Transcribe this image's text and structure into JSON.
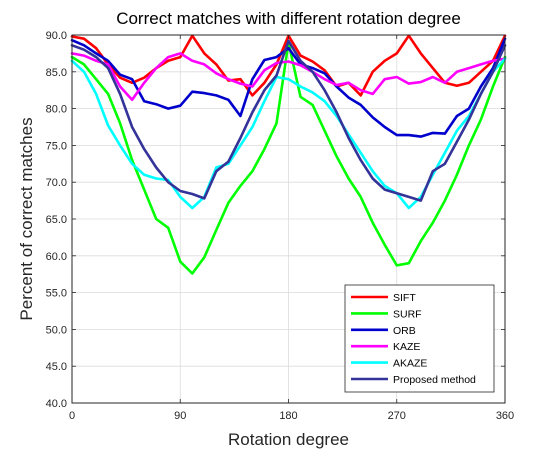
{
  "chart_data": {
    "type": "line",
    "title": "Correct matches with different rotation degree",
    "xlabel": "Rotation degree",
    "ylabel": "Percent of correct matches",
    "xlim": [
      0,
      360
    ],
    "ylim": [
      40,
      90
    ],
    "grid": true,
    "legend_position": "bottom-right",
    "x_ticks": [
      "0",
      "90",
      "180",
      "270",
      "360"
    ],
    "y_ticks": [
      "40.0",
      "45.0",
      "50.0",
      "55.0",
      "60.0",
      "65.0",
      "70.0",
      "75.0",
      "80.0",
      "85.0",
      "90.0"
    ],
    "x": [
      0,
      10,
      20,
      30,
      40,
      50,
      60,
      70,
      80,
      90,
      100,
      110,
      120,
      130,
      140,
      150,
      160,
      170,
      180,
      190,
      200,
      210,
      220,
      230,
      240,
      250,
      260,
      270,
      280,
      290,
      300,
      310,
      320,
      330,
      340,
      350,
      360
    ],
    "series": [
      {
        "name": "SIFT",
        "color": "#ff0000",
        "values": [
          89.8,
          89.5,
          88.2,
          86.0,
          84.2,
          83.5,
          84.2,
          85.5,
          86.5,
          87.0,
          89.9,
          87.5,
          86.0,
          83.8,
          84.0,
          81.8,
          83.5,
          86.0,
          89.9,
          87.2,
          86.4,
          85.2,
          83.0,
          83.5,
          81.8,
          85.0,
          86.5,
          87.5,
          89.9,
          87.5,
          85.5,
          83.5,
          83.1,
          83.5,
          85.0,
          86.5,
          89.9
        ]
      },
      {
        "name": "SURF",
        "color": "#00ff00",
        "values": [
          87.0,
          86.0,
          84.0,
          82.0,
          78.0,
          73.0,
          69.0,
          65.0,
          63.8,
          59.2,
          57.6,
          59.8,
          63.5,
          67.2,
          69.5,
          71.5,
          74.5,
          78.0,
          89.0,
          81.6,
          80.5,
          77.0,
          73.5,
          70.5,
          68.0,
          64.5,
          61.5,
          58.7,
          59.0,
          62.0,
          64.5,
          67.5,
          71.0,
          75.0,
          78.5,
          83.0,
          87.0
        ]
      },
      {
        "name": "ORB",
        "color": "#0000cd",
        "values": [
          89.3,
          88.6,
          87.5,
          86.5,
          84.6,
          84.0,
          81.0,
          80.6,
          80.0,
          80.4,
          82.3,
          82.1,
          81.8,
          81.2,
          79.0,
          84.0,
          86.6,
          87.0,
          88.2,
          86.0,
          85.5,
          84.8,
          83.0,
          81.5,
          80.5,
          78.8,
          77.5,
          76.4,
          76.4,
          76.2,
          76.7,
          76.6,
          79.0,
          80.0,
          83.0,
          85.5,
          89.5
        ]
      },
      {
        "name": "KAZE",
        "color": "#ff00ff",
        "values": [
          87.5,
          87.2,
          86.5,
          86.0,
          83.0,
          81.2,
          83.5,
          85.5,
          87.0,
          87.5,
          86.5,
          86.0,
          84.8,
          84.0,
          83.4,
          83.0,
          85.2,
          86.2,
          86.4,
          85.9,
          85.0,
          84.0,
          83.2,
          83.5,
          82.5,
          82.0,
          84.0,
          84.3,
          83.4,
          83.6,
          84.3,
          83.5,
          85.0,
          85.5,
          86.0,
          86.5,
          86.8
        ]
      },
      {
        "name": "AKAZE",
        "color": "#00ffff",
        "values": [
          86.5,
          85.0,
          82.0,
          77.7,
          75.0,
          72.5,
          71.0,
          70.5,
          70.3,
          68.0,
          66.5,
          68.0,
          72.0,
          72.5,
          75.0,
          77.5,
          81.0,
          84.3,
          84.0,
          83.0,
          82.2,
          81.0,
          79.0,
          76.5,
          74.0,
          71.5,
          69.5,
          68.5,
          66.5,
          68.0,
          71.0,
          74.0,
          77.0,
          79.0,
          82.0,
          85.0,
          86.8
        ]
      },
      {
        "name": "Proposed method",
        "color": "#333399",
        "values": [
          88.6,
          88.0,
          87.0,
          85.5,
          82.0,
          77.5,
          74.5,
          72.0,
          70.0,
          68.8,
          68.4,
          67.8,
          71.5,
          72.8,
          76.0,
          79.5,
          82.5,
          84.5,
          89.2,
          86.5,
          85.0,
          82.5,
          79.5,
          76.0,
          73.0,
          70.5,
          69.0,
          68.5,
          68.0,
          67.5,
          71.5,
          72.5,
          75.5,
          78.5,
          82.0,
          85.0,
          88.6
        ]
      }
    ]
  }
}
